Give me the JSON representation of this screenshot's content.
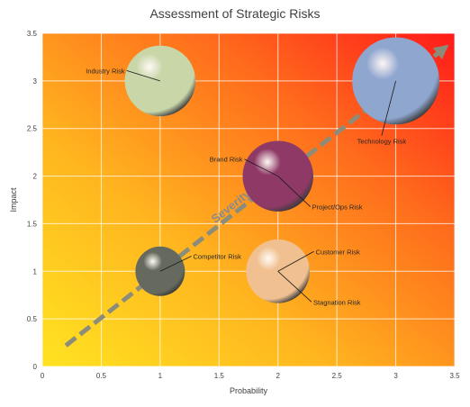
{
  "chart_data": {
    "type": "bubble",
    "title": "Assessment of Strategic Risks",
    "xlabel": "Probability",
    "ylabel": "Impact",
    "xlim": [
      0,
      3.5
    ],
    "ylim": [
      0,
      3.5
    ],
    "xticks": [
      "0",
      "0.5",
      "1",
      "1.5",
      "2",
      "2.5",
      "3",
      "3.5"
    ],
    "yticks": [
      "0",
      "0.5",
      "1",
      "1.5",
      "2",
      "2.5",
      "3",
      "3.5"
    ],
    "grid": true,
    "background": "gradient yellow (bottom-left) to red (top-right)",
    "points": [
      {
        "label": "Industry Risk",
        "x": 1,
        "y": 3,
        "size": 0.3,
        "color": "#c8d6a8"
      },
      {
        "label": "Technology Risk",
        "x": 3,
        "y": 3,
        "size": 0.37,
        "color": "#8fa6cf"
      },
      {
        "label": "Brand Risk",
        "x": 2,
        "y": 2,
        "size": 0.3,
        "color": "#8f3a66"
      },
      {
        "label": "Project/Ops Risk",
        "x": 2,
        "y": 2,
        "size": 0.3,
        "color": "#8f3a66"
      },
      {
        "label": "Competitor Risk",
        "x": 1,
        "y": 1,
        "size": 0.21,
        "color": "#666a5e"
      },
      {
        "label": "Customer Risk",
        "x": 2,
        "y": 1,
        "size": 0.27,
        "color": "#f0c090"
      },
      {
        "label": "Stagnation Risk",
        "x": 2,
        "y": 1,
        "size": 0.27,
        "color": "#f0c090"
      }
    ],
    "annotation": {
      "text": "Severity",
      "arrow_from": [
        0.2,
        0.22
      ],
      "arrow_to": [
        3.45,
        3.38
      ]
    }
  }
}
